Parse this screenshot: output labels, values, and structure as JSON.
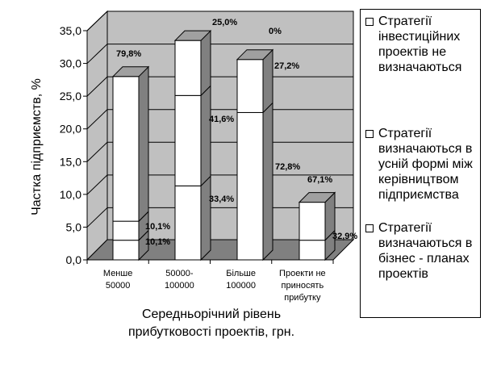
{
  "chart_data": {
    "type": "bar",
    "stacked": true,
    "style": "3d",
    "categories": [
      "Менше 50000",
      "50000-100000",
      "Більше 100000",
      "Проекти не приносять прибутку"
    ],
    "series": [
      {
        "name": "Стратегії визначаються в бізнес - планах проектів",
        "values": [
          3.0,
          11.3,
          22.5,
          3.0
        ]
      },
      {
        "name": "Стратегії визначаються в усній формі між керівництвом підприємства",
        "values": [
          2.9,
          13.8,
          0,
          0
        ]
      },
      {
        "name": "Стратегії інвестиційних проектів не визначаються",
        "values": [
          22.1,
          8.4,
          8.1,
          5.8
        ]
      }
    ],
    "data_labels": [
      {
        "category": 0,
        "series": 0,
        "text": "10,1%"
      },
      {
        "category": 0,
        "series": 1,
        "text": "10,1%"
      },
      {
        "category": 0,
        "series": 2,
        "text": "79,8%"
      },
      {
        "category": 1,
        "series": 0,
        "text": "33,4%"
      },
      {
        "category": 1,
        "series": 1,
        "text": "41,6%"
      },
      {
        "category": 1,
        "series": 2,
        "text": "25,0%"
      },
      {
        "category": 2,
        "series": 0,
        "text": "72,8%"
      },
      {
        "category": 2,
        "series": 1,
        "text": "0%"
      },
      {
        "category": 2,
        "series": 2,
        "text": "27,2%"
      },
      {
        "category": 3,
        "series": 0,
        "text": "32,9%"
      },
      {
        "category": 3,
        "series": 2,
        "text": "67,1%"
      }
    ],
    "ylabel": "Частка підприємств, %",
    "xlabel": "Середньорічний рівень прибутковості проектів, грн.",
    "ylim": [
      0,
      35
    ],
    "yticks": [
      "0,0",
      "5,0",
      "10,0",
      "15,0",
      "20,0",
      "25,0",
      "30,0",
      "35,0"
    ],
    "grid": true,
    "legend_position": "right",
    "legend": [
      "Стратегії інвестиційних проектів не визначаються",
      "Стратегії визначаються в усній формі між керівництвом підприємства",
      "Стратегії визначаються в бізнес - планах проектів"
    ],
    "colors": {
      "wall": "#c0c0c0",
      "floor": "#808080",
      "bar_front": "#ffffff",
      "bar_side": "#808080",
      "bar_top": "#a0a0a0"
    }
  }
}
